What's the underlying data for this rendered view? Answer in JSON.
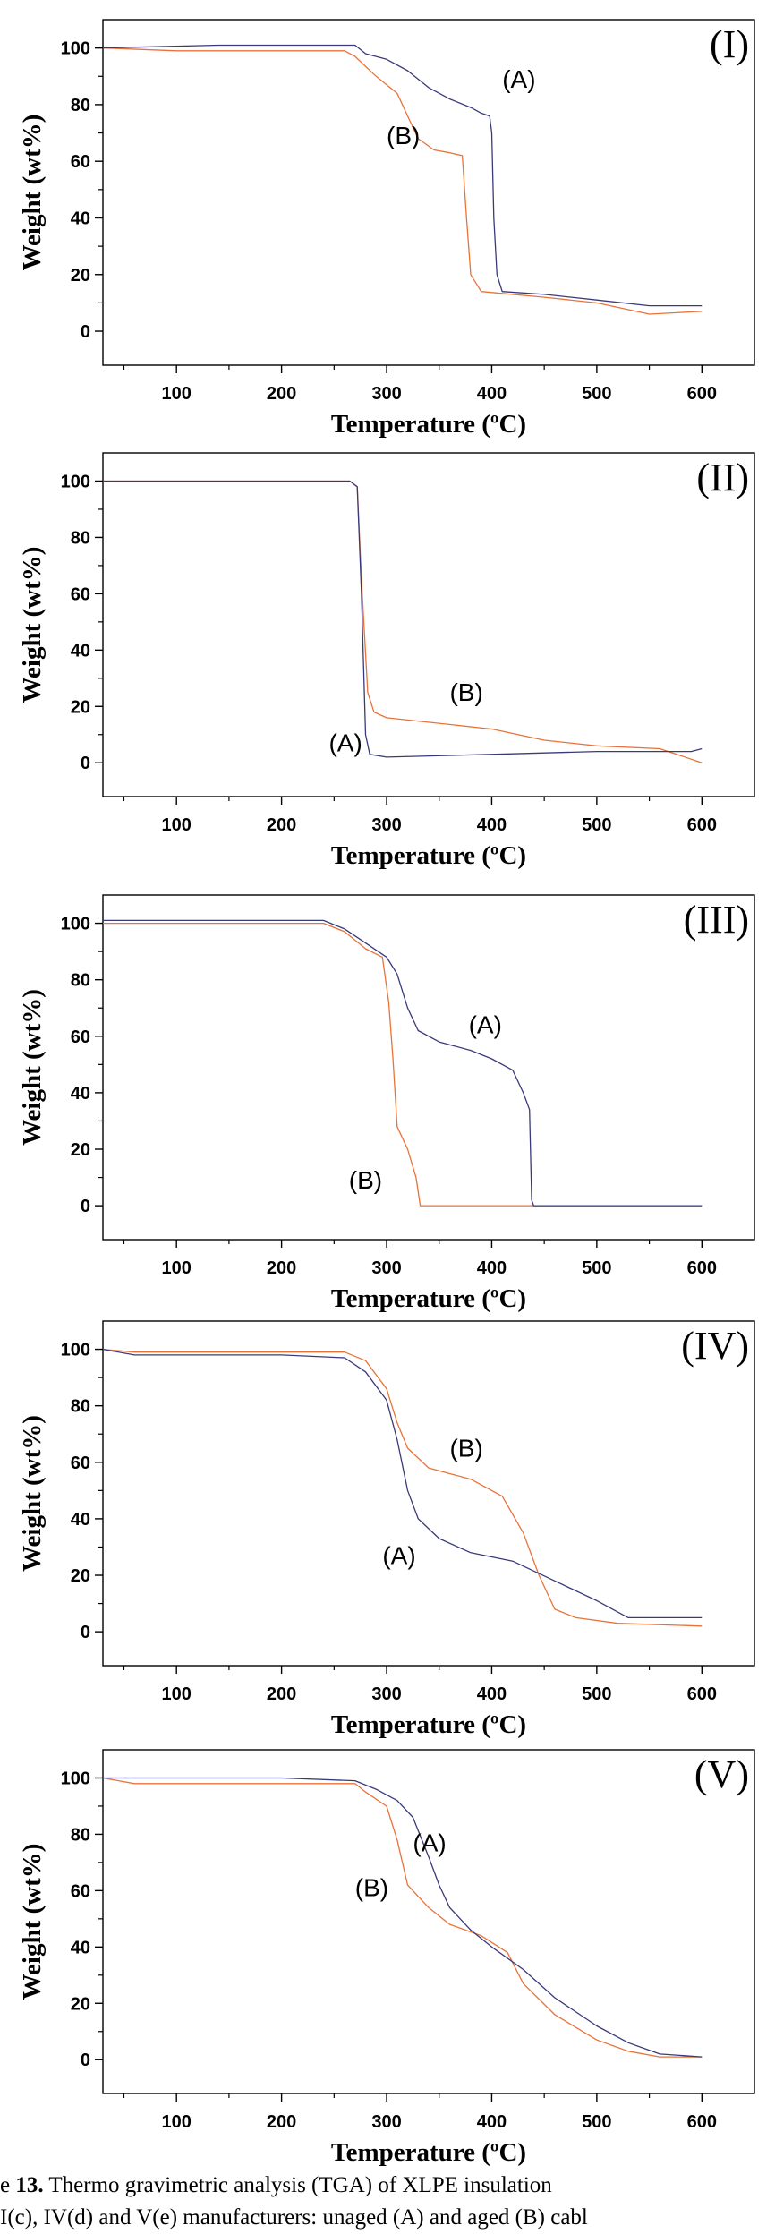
{
  "caption": {
    "line1_prefix": "e ",
    "line1_bold": "13.",
    "line1_rest": " Thermo gravimetric analysis (TGA) of XLPE insulation",
    "line2": "I(c), IV(d) and V(e)  manufacturers: unaged (A) and aged (B) cabl"
  },
  "colors": {
    "series_A": "#3a3a7a",
    "series_B": "#e8733a",
    "axis": "#000000"
  },
  "chart_data": [
    {
      "type": "line",
      "panel_label": "(I)",
      "xlabel": "Temperature (ºC)",
      "ylabel": "Weight (wt%)",
      "xlim": [
        30,
        650
      ],
      "ylim": [
        -12,
        110
      ],
      "xticks": [
        100,
        200,
        300,
        400,
        500,
        600
      ],
      "yticks": [
        0,
        20,
        40,
        60,
        80,
        100
      ],
      "series": [
        {
          "name": "(A)",
          "points": [
            [
              30,
              100
            ],
            [
              140,
              101
            ],
            [
              270,
              101
            ],
            [
              280,
              98
            ],
            [
              300,
              96
            ],
            [
              320,
              92
            ],
            [
              340,
              86
            ],
            [
              360,
              82
            ],
            [
              380,
              79
            ],
            [
              390,
              77
            ],
            [
              398,
              76
            ],
            [
              400,
              70
            ],
            [
              402,
              40
            ],
            [
              405,
              20
            ],
            [
              410,
              14
            ],
            [
              450,
              13
            ],
            [
              500,
              11
            ],
            [
              550,
              9
            ],
            [
              600,
              9
            ]
          ]
        },
        {
          "name": "(B)",
          "points": [
            [
              30,
              100
            ],
            [
              100,
              99
            ],
            [
              260,
              99
            ],
            [
              270,
              97
            ],
            [
              290,
              90
            ],
            [
              310,
              84
            ],
            [
              320,
              76
            ],
            [
              330,
              68
            ],
            [
              345,
              64
            ],
            [
              360,
              63
            ],
            [
              372,
              62
            ],
            [
              376,
              40
            ],
            [
              380,
              20
            ],
            [
              390,
              14
            ],
            [
              450,
              12
            ],
            [
              500,
              10
            ],
            [
              550,
              6
            ],
            [
              600,
              7
            ]
          ]
        }
      ],
      "annotations": [
        {
          "text": "(A)",
          "x": 410,
          "y": 86
        },
        {
          "text": "(B)",
          "x": 300,
          "y": 66
        }
      ]
    },
    {
      "type": "line",
      "panel_label": "(II)",
      "xlabel": "Temperature (ºC)",
      "ylabel": "Weight (wt%)",
      "xlim": [
        30,
        650
      ],
      "ylim": [
        -12,
        110
      ],
      "xticks": [
        100,
        200,
        300,
        400,
        500,
        600
      ],
      "yticks": [
        0,
        20,
        40,
        60,
        80,
        100
      ],
      "series": [
        {
          "name": "(A)",
          "points": [
            [
              30,
              100
            ],
            [
              265,
              100
            ],
            [
              272,
              98
            ],
            [
              276,
              60
            ],
            [
              280,
              10
            ],
            [
              284,
              3
            ],
            [
              300,
              2
            ],
            [
              400,
              3
            ],
            [
              500,
              4
            ],
            [
              590,
              4
            ],
            [
              600,
              5
            ]
          ]
        },
        {
          "name": "(B)",
          "points": [
            [
              30,
              100
            ],
            [
              265,
              100
            ],
            [
              272,
              98
            ],
            [
              276,
              65
            ],
            [
              282,
              25
            ],
            [
              288,
              18
            ],
            [
              300,
              16
            ],
            [
              400,
              12
            ],
            [
              450,
              8
            ],
            [
              500,
              6
            ],
            [
              560,
              5
            ],
            [
              600,
              0
            ]
          ]
        }
      ],
      "annotations": [
        {
          "text": "(B)",
          "x": 360,
          "y": 22
        },
        {
          "text": "(A)",
          "x": 245,
          "y": 4
        }
      ]
    },
    {
      "type": "line",
      "panel_label": "(III)",
      "xlabel": "Temperature (ºC)",
      "ylabel": "Weight (wt%)",
      "xlim": [
        30,
        650
      ],
      "ylim": [
        -12,
        110
      ],
      "xticks": [
        100,
        200,
        300,
        400,
        500,
        600
      ],
      "yticks": [
        0,
        20,
        40,
        60,
        80,
        100
      ],
      "series": [
        {
          "name": "(A)",
          "points": [
            [
              30,
              101
            ],
            [
              40,
              101
            ],
            [
              240,
              101
            ],
            [
              260,
              98
            ],
            [
              280,
              93
            ],
            [
              300,
              88
            ],
            [
              310,
              82
            ],
            [
              320,
              70
            ],
            [
              330,
              62
            ],
            [
              350,
              58
            ],
            [
              380,
              55
            ],
            [
              400,
              52
            ],
            [
              420,
              48
            ],
            [
              430,
              40
            ],
            [
              436,
              34
            ],
            [
              438,
              2
            ],
            [
              440,
              0
            ],
            [
              600,
              0
            ]
          ]
        },
        {
          "name": "(B)",
          "points": [
            [
              30,
              100
            ],
            [
              240,
              100
            ],
            [
              260,
              97
            ],
            [
              280,
              91
            ],
            [
              296,
              88
            ],
            [
              302,
              72
            ],
            [
              306,
              52
            ],
            [
              310,
              28
            ],
            [
              320,
              20
            ],
            [
              328,
              10
            ],
            [
              332,
              0
            ],
            [
              600,
              0
            ]
          ]
        }
      ],
      "annotations": [
        {
          "text": "(A)",
          "x": 378,
          "y": 61
        },
        {
          "text": "(B)",
          "x": 264,
          "y": 6
        }
      ]
    },
    {
      "type": "line",
      "panel_label": "(IV)",
      "xlabel": "Temperature (ºC)",
      "ylabel": "Weight (wt%)",
      "xlim": [
        30,
        650
      ],
      "ylim": [
        -12,
        110
      ],
      "xticks": [
        100,
        200,
        300,
        400,
        500,
        600
      ],
      "yticks": [
        0,
        20,
        40,
        60,
        80,
        100
      ],
      "series": [
        {
          "name": "(A)",
          "points": [
            [
              30,
              100
            ],
            [
              60,
              98
            ],
            [
              200,
              98
            ],
            [
              260,
              97
            ],
            [
              280,
              92
            ],
            [
              300,
              82
            ],
            [
              310,
              68
            ],
            [
              320,
              50
            ],
            [
              330,
              40
            ],
            [
              350,
              33
            ],
            [
              380,
              28
            ],
            [
              420,
              25
            ],
            [
              460,
              18
            ],
            [
              500,
              11
            ],
            [
              530,
              5
            ],
            [
              560,
              5
            ],
            [
              600,
              5
            ]
          ]
        },
        {
          "name": "(B)",
          "points": [
            [
              30,
              100
            ],
            [
              60,
              99
            ],
            [
              200,
              99
            ],
            [
              260,
              99
            ],
            [
              280,
              96
            ],
            [
              300,
              86
            ],
            [
              310,
              74
            ],
            [
              320,
              65
            ],
            [
              340,
              58
            ],
            [
              380,
              54
            ],
            [
              410,
              48
            ],
            [
              430,
              35
            ],
            [
              445,
              20
            ],
            [
              460,
              8
            ],
            [
              480,
              5
            ],
            [
              520,
              3
            ],
            [
              600,
              2
            ]
          ]
        }
      ],
      "annotations": [
        {
          "text": "(B)",
          "x": 360,
          "y": 62
        },
        {
          "text": "(A)",
          "x": 296,
          "y": 24
        }
      ]
    },
    {
      "type": "line",
      "panel_label": "(V)",
      "xlabel": "Temperature (ºC)",
      "ylabel": "Weight (wt%)",
      "xlim": [
        30,
        650
      ],
      "ylim": [
        -12,
        110
      ],
      "xticks": [
        100,
        200,
        300,
        400,
        500,
        600
      ],
      "yticks": [
        0,
        20,
        40,
        60,
        80,
        100
      ],
      "series": [
        {
          "name": "(A)",
          "points": [
            [
              30,
              100
            ],
            [
              60,
              100
            ],
            [
              200,
              100
            ],
            [
              270,
              99
            ],
            [
              290,
              96
            ],
            [
              310,
              92
            ],
            [
              325,
              86
            ],
            [
              340,
              72
            ],
            [
              350,
              62
            ],
            [
              360,
              54
            ],
            [
              380,
              46
            ],
            [
              400,
              40
            ],
            [
              430,
              32
            ],
            [
              460,
              22
            ],
            [
              500,
              12
            ],
            [
              530,
              6
            ],
            [
              560,
              2
            ],
            [
              600,
              1
            ]
          ]
        },
        {
          "name": "(B)",
          "points": [
            [
              30,
              100
            ],
            [
              60,
              98
            ],
            [
              270,
              98
            ],
            [
              280,
              95
            ],
            [
              300,
              90
            ],
            [
              310,
              78
            ],
            [
              320,
              62
            ],
            [
              340,
              54
            ],
            [
              360,
              48
            ],
            [
              390,
              44
            ],
            [
              415,
              38
            ],
            [
              430,
              27
            ],
            [
              460,
              16
            ],
            [
              500,
              7
            ],
            [
              530,
              3
            ],
            [
              560,
              1
            ],
            [
              600,
              1
            ]
          ]
        }
      ],
      "annotations": [
        {
          "text": "(A)",
          "x": 325,
          "y": 74
        },
        {
          "text": "(B)",
          "x": 270,
          "y": 58
        }
      ]
    }
  ]
}
